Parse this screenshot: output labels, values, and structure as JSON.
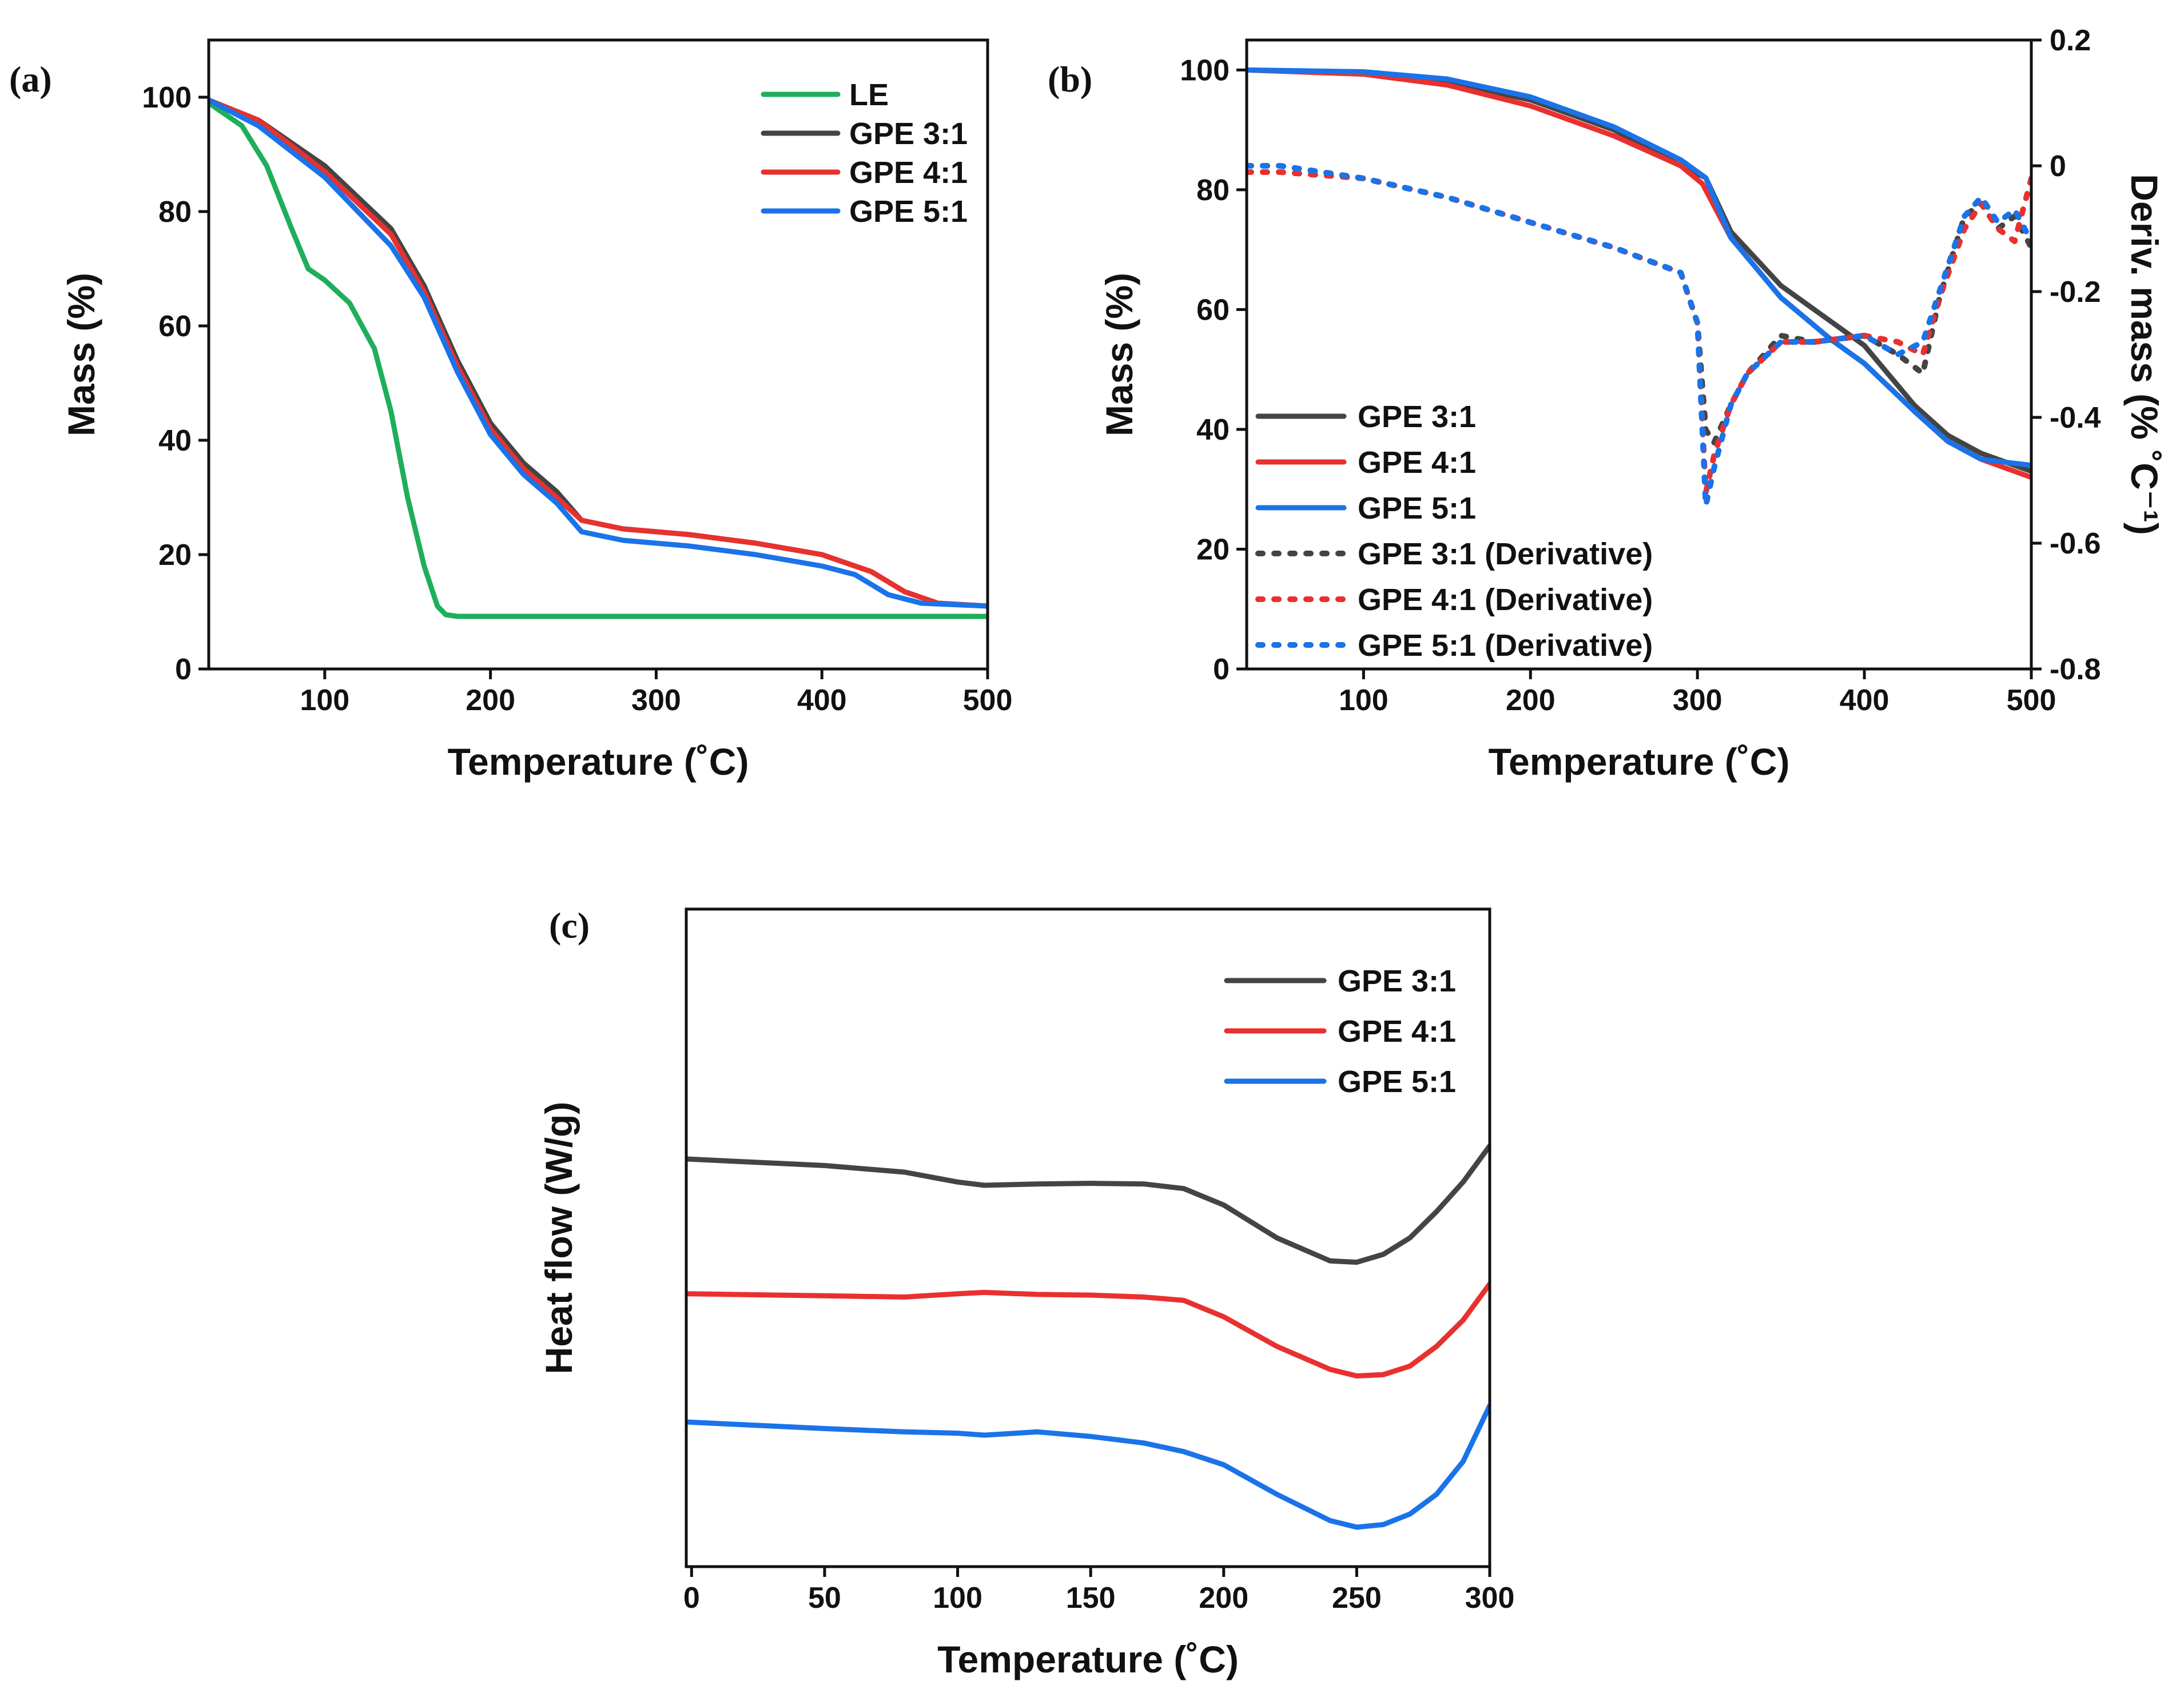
{
  "colors": {
    "LE": "#1fae5b",
    "GPE 3:1": "#444444",
    "GPE 4:1": "#e8312f",
    "GPE 5:1": "#1a73e8"
  },
  "chart_data": [
    {
      "panel": "(a)",
      "type": "line",
      "xlabel": "Temperature (˚C)",
      "ylabel": "Mass (%)",
      "xlim": [
        30,
        500
      ],
      "ylim": [
        0,
        110
      ],
      "xticks": [
        100,
        200,
        300,
        400,
        500
      ],
      "yticks": [
        0,
        20,
        40,
        60,
        80,
        100
      ],
      "legend_position": "top-right",
      "series": [
        {
          "name": "LE",
          "color": "#1fae5b",
          "style": "solid",
          "x": [
            30,
            50,
            65,
            80,
            90,
            100,
            115,
            130,
            140,
            150,
            160,
            168,
            173,
            180,
            250,
            350,
            450,
            500
          ],
          "y": [
            99,
            95,
            88,
            77,
            70,
            68,
            64,
            56,
            45,
            30,
            18,
            11,
            9.5,
            9.2,
            9.2,
            9.2,
            9.2,
            9.2
          ]
        },
        {
          "name": "GPE 3:1",
          "color": "#444444",
          "style": "solid",
          "x": [
            30,
            60,
            100,
            140,
            160,
            180,
            200,
            220,
            240,
            255,
            280,
            320,
            360,
            400,
            430,
            450,
            470,
            500
          ],
          "y": [
            99.5,
            96,
            88,
            77,
            67,
            54,
            43,
            36,
            31,
            26,
            24.5,
            23.5,
            22,
            20,
            17,
            13.5,
            11.5,
            11
          ]
        },
        {
          "name": "GPE 4:1",
          "color": "#e8312f",
          "style": "solid",
          "x": [
            30,
            60,
            100,
            140,
            160,
            180,
            200,
            220,
            240,
            255,
            280,
            320,
            360,
            400,
            430,
            450,
            470,
            500
          ],
          "y": [
            99.5,
            96,
            87,
            76,
            66,
            53,
            42,
            35,
            30,
            26,
            24.5,
            23.5,
            22,
            20,
            17,
            13.5,
            11.5,
            11
          ]
        },
        {
          "name": "GPE 5:1",
          "color": "#1a73e8",
          "style": "solid",
          "x": [
            30,
            60,
            100,
            140,
            160,
            180,
            200,
            220,
            240,
            255,
            280,
            320,
            360,
            400,
            420,
            440,
            460,
            500
          ],
          "y": [
            99.5,
            95,
            86,
            74,
            65,
            52,
            41,
            34,
            29,
            24,
            22.5,
            21.5,
            20,
            18,
            16.5,
            13,
            11.5,
            11
          ]
        }
      ]
    },
    {
      "panel": "(b)",
      "type": "line",
      "xlabel": "Temperature (˚C)",
      "ylabel": "Mass (%)",
      "y2label": "Deriv. mass (% ˚C⁻¹)",
      "xlim": [
        30,
        500
      ],
      "ylim": [
        0,
        105
      ],
      "y2lim": [
        -0.8,
        0.2
      ],
      "xticks": [
        100,
        200,
        300,
        400,
        500
      ],
      "yticks": [
        0,
        20,
        40,
        60,
        80,
        100
      ],
      "y2ticks": [
        0.2,
        0.0,
        -0.2,
        -0.4,
        -0.6,
        -0.8
      ],
      "legend_position": "lower-left",
      "series": [
        {
          "name": "GPE 3:1",
          "axis": "left",
          "color": "#444444",
          "style": "solid",
          "x": [
            30,
            100,
            150,
            200,
            250,
            290,
            305,
            320,
            350,
            380,
            400,
            430,
            450,
            470,
            500
          ],
          "y": [
            100,
            99.5,
            98,
            95,
            90,
            84,
            82,
            73,
            64,
            58,
            54,
            44,
            39,
            36,
            33
          ]
        },
        {
          "name": "GPE 4:1",
          "axis": "left",
          "color": "#e8312f",
          "style": "solid",
          "x": [
            30,
            100,
            150,
            200,
            250,
            290,
            303,
            320,
            350,
            380,
            400,
            430,
            450,
            470,
            500
          ],
          "y": [
            100,
            99.3,
            97.5,
            94,
            89,
            84,
            81,
            72,
            62,
            55,
            51,
            43,
            38,
            35,
            32
          ]
        },
        {
          "name": "GPE 5:1",
          "axis": "left",
          "color": "#1a73e8",
          "style": "solid",
          "x": [
            30,
            100,
            150,
            200,
            250,
            290,
            305,
            320,
            350,
            380,
            400,
            430,
            450,
            470,
            500
          ],
          "y": [
            100,
            99.7,
            98.5,
            95.5,
            90.5,
            85,
            82,
            72,
            62,
            55,
            51,
            43,
            38,
            35,
            34
          ]
        },
        {
          "name": "GPE 3:1 (Derivative)",
          "axis": "right",
          "color": "#444444",
          "style": "dotted",
          "x": [
            30,
            50,
            100,
            150,
            200,
            250,
            290,
            300,
            305,
            310,
            320,
            330,
            350,
            370,
            400,
            420,
            435,
            445,
            460,
            470,
            480,
            490,
            500
          ],
          "y": [
            0.0,
            0.0,
            -0.02,
            -0.05,
            -0.09,
            -0.13,
            -0.17,
            -0.25,
            -0.42,
            -0.44,
            -0.38,
            -0.33,
            -0.27,
            -0.28,
            -0.27,
            -0.3,
            -0.33,
            -0.21,
            -0.08,
            -0.06,
            -0.1,
            -0.08,
            -0.13
          ]
        },
        {
          "name": "GPE 4:1 (Derivative)",
          "axis": "right",
          "color": "#e8312f",
          "style": "dotted",
          "x": [
            30,
            50,
            100,
            150,
            200,
            250,
            290,
            300,
            305,
            310,
            320,
            330,
            350,
            370,
            400,
            420,
            435,
            445,
            460,
            470,
            480,
            490,
            500
          ],
          "y": [
            -0.01,
            -0.01,
            -0.02,
            -0.05,
            -0.09,
            -0.13,
            -0.17,
            -0.25,
            -0.52,
            -0.46,
            -0.38,
            -0.33,
            -0.28,
            -0.28,
            -0.27,
            -0.28,
            -0.3,
            -0.21,
            -0.1,
            -0.06,
            -0.1,
            -0.12,
            -0.02
          ]
        },
        {
          "name": "GPE 5:1 (Derivative)",
          "axis": "right",
          "color": "#1a73e8",
          "style": "dotted",
          "x": [
            30,
            50,
            100,
            150,
            200,
            250,
            290,
            300,
            305,
            310,
            320,
            330,
            350,
            370,
            400,
            420,
            435,
            445,
            460,
            470,
            480,
            490,
            500
          ],
          "y": [
            0.0,
            0.0,
            -0.02,
            -0.05,
            -0.09,
            -0.13,
            -0.17,
            -0.25,
            -0.54,
            -0.48,
            -0.38,
            -0.33,
            -0.28,
            -0.28,
            -0.27,
            -0.3,
            -0.28,
            -0.2,
            -0.08,
            -0.05,
            -0.09,
            -0.07,
            -0.12
          ]
        }
      ]
    },
    {
      "panel": "(c)",
      "type": "line",
      "xlabel": "Temperature (˚C)",
      "ylabel": "Heat flow (W/g)",
      "xlim": [
        -2,
        300
      ],
      "ylim": [
        0,
        1
      ],
      "xticks": [
        0,
        50,
        100,
        150,
        200,
        250,
        300
      ],
      "yticks": [],
      "legend_position": "top-right",
      "series": [
        {
          "name": "GPE 3:1",
          "color": "#444444",
          "style": "solid",
          "x": [
            -2,
            50,
            80,
            100,
            110,
            130,
            150,
            170,
            185,
            200,
            220,
            240,
            250,
            260,
            270,
            280,
            290,
            300
          ],
          "y": [
            0.62,
            0.61,
            0.6,
            0.585,
            0.58,
            0.582,
            0.583,
            0.582,
            0.575,
            0.55,
            0.5,
            0.465,
            0.463,
            0.475,
            0.5,
            0.54,
            0.585,
            0.64
          ]
        },
        {
          "name": "GPE 4:1",
          "color": "#e8312f",
          "style": "solid",
          "x": [
            -2,
            50,
            80,
            100,
            110,
            130,
            150,
            170,
            185,
            200,
            220,
            240,
            250,
            260,
            270,
            280,
            290,
            300
          ],
          "y": [
            0.415,
            0.412,
            0.41,
            0.415,
            0.417,
            0.414,
            0.413,
            0.41,
            0.405,
            0.38,
            0.335,
            0.3,
            0.29,
            0.292,
            0.305,
            0.335,
            0.375,
            0.43
          ]
        },
        {
          "name": "GPE 5:1",
          "color": "#1a73e8",
          "style": "solid",
          "x": [
            -2,
            50,
            80,
            100,
            110,
            130,
            150,
            170,
            185,
            200,
            220,
            240,
            250,
            260,
            270,
            280,
            290,
            300
          ],
          "y": [
            0.22,
            0.21,
            0.205,
            0.203,
            0.2,
            0.205,
            0.198,
            0.188,
            0.175,
            0.155,
            0.11,
            0.07,
            0.06,
            0.064,
            0.08,
            0.11,
            0.16,
            0.245
          ]
        }
      ]
    }
  ]
}
